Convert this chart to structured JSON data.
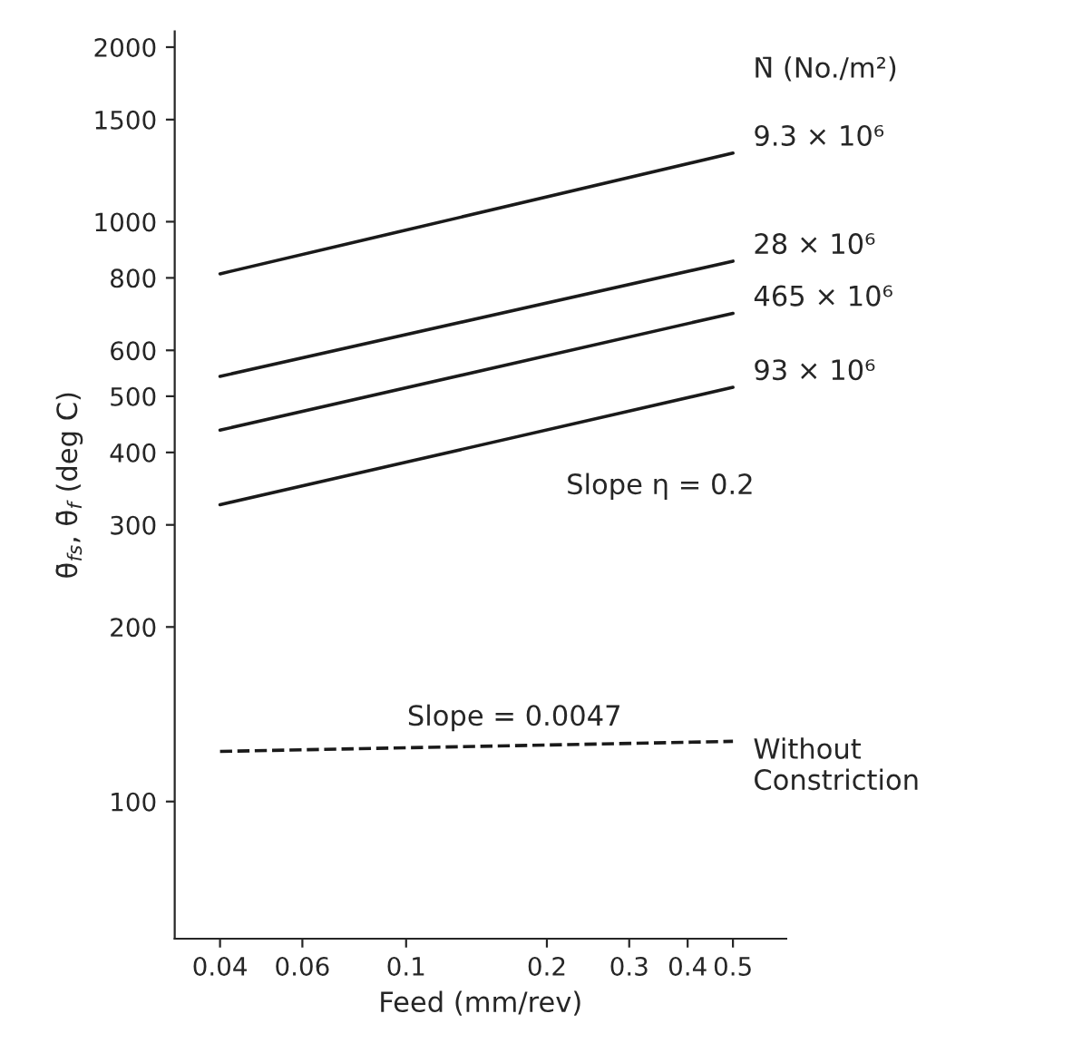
{
  "chart_data": {
    "type": "line",
    "xlabel": "Feed (mm/rev)",
    "ylabel": "θ̄$_{fs}$, θ̄$_{f}$ (deg C)",
    "legend_title": "N̄ (No./m²)",
    "x": [
      0.04,
      0.5
    ],
    "series": [
      {
        "name": "9.3 × 10⁶",
        "color": "#1a1a1a",
        "values": [
          813,
          1313
        ],
        "line_style": "solid"
      },
      {
        "name": "28 × 10⁶",
        "color": "#1a1a1a",
        "values": [
          541,
          855
        ],
        "line_style": "solid"
      },
      {
        "name": "465 × 10⁶",
        "color": "#1a1a1a",
        "values": [
          437,
          695
        ],
        "line_style": "solid"
      },
      {
        "name": "93 × 10⁶",
        "color": "#1a1a1a",
        "values": [
          325,
          518
        ],
        "line_style": "solid"
      },
      {
        "name": "Without\nConstriction",
        "color": "#1a1a1a",
        "values": [
          122,
          127
        ],
        "line_style": "dashed"
      }
    ],
    "annotations": [
      "Slope η = 0.2",
      "Slope = 0.0047"
    ],
    "log": "xy",
    "xlim": [
      0.032,
      0.65
    ],
    "ylim": [
      58,
      2130
    ],
    "xticks": [
      0.04,
      0.06,
      0.1,
      0.2,
      0.3,
      0.4,
      0.5
    ],
    "yticks": [
      100,
      200,
      300,
      400,
      500,
      600,
      800,
      1000,
      1500,
      2000
    ],
    "grid": false,
    "legend": false,
    "marker": "none"
  }
}
